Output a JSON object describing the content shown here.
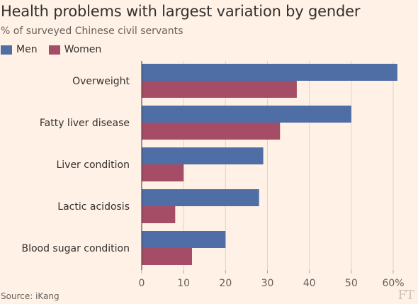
{
  "title": "Health problems with largest variation by gender",
  "subtitle": "% of surveyed Chinese civil servants",
  "source": "Source: iKang",
  "logo": "FT",
  "colors": {
    "men": "#4e6ea5",
    "women": "#a54d66",
    "background": "#fff1e5",
    "grid": "#e0d4c8"
  },
  "chart_data": {
    "type": "bar",
    "orientation": "horizontal",
    "categories": [
      "Overweight",
      "Fatty liver disease",
      "Liver condition",
      "Lactic acidosis",
      "Blood sugar condition"
    ],
    "series": [
      {
        "name": "Men",
        "values": [
          61,
          50,
          29,
          28,
          20
        ]
      },
      {
        "name": "Women",
        "values": [
          37,
          33,
          10,
          8,
          12
        ]
      }
    ],
    "xlim": [
      0,
      60
    ],
    "ticks": [
      {
        "value": 0,
        "label": "0"
      },
      {
        "value": 10,
        "label": "10"
      },
      {
        "value": 20,
        "label": "20"
      },
      {
        "value": 30,
        "label": "30"
      },
      {
        "value": 40,
        "label": "40"
      },
      {
        "value": 50,
        "label": "50"
      },
      {
        "value": 60,
        "label": "60%"
      }
    ],
    "grid": true,
    "legend": "top-left"
  }
}
